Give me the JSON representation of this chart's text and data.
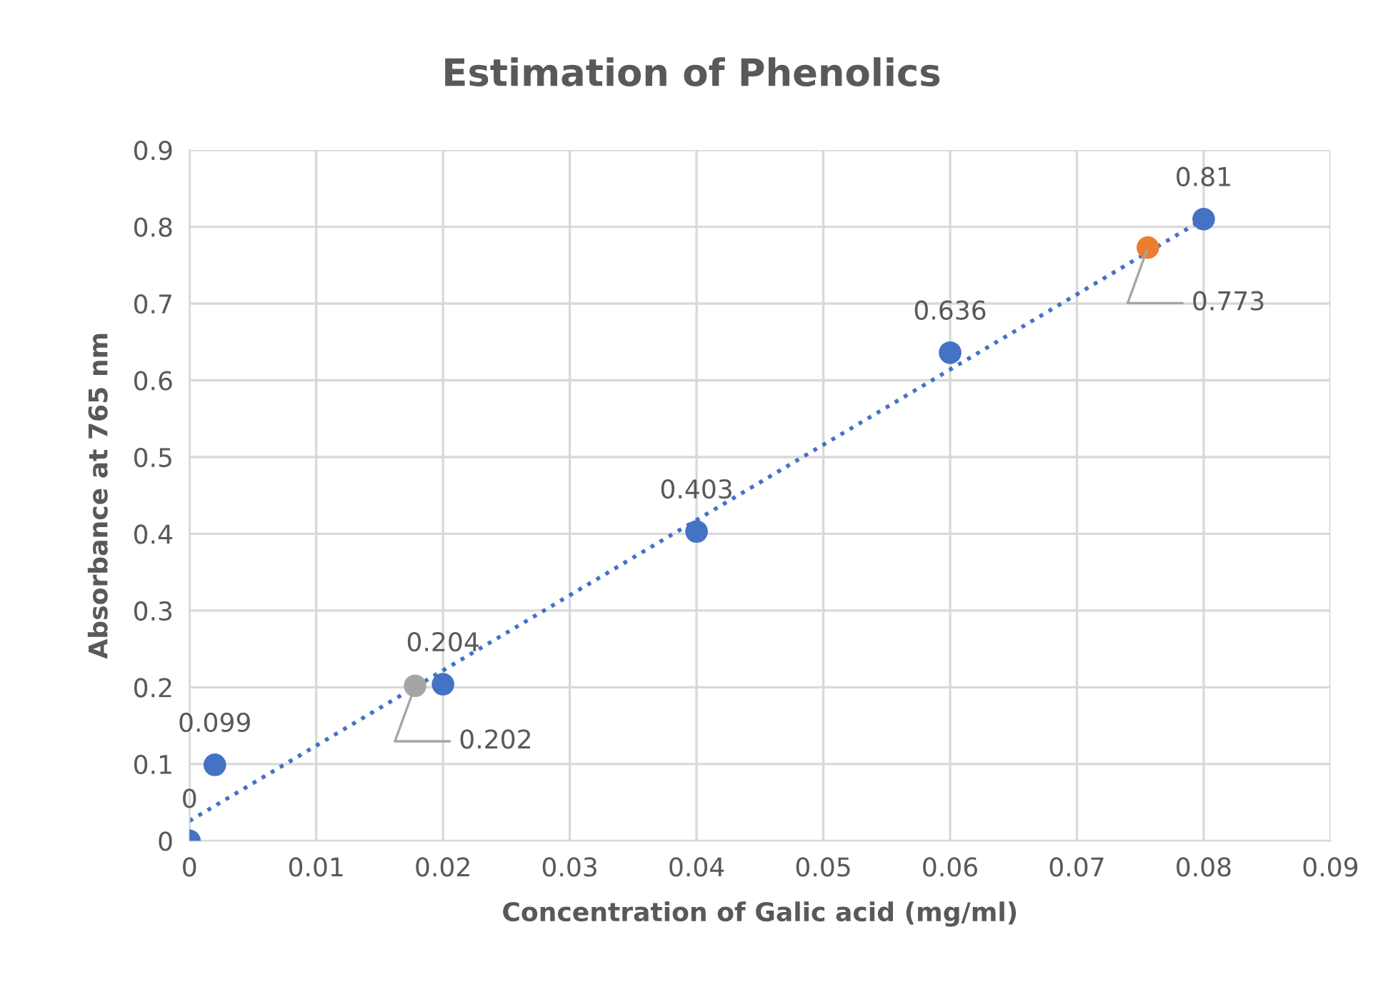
{
  "chart_data": {
    "type": "scatter",
    "title": "Estimation of Phenolics",
    "xlabel": "Concentration of Galic acid (mg/ml)",
    "ylabel": "Absorbance at 765 nm",
    "xlim": [
      0,
      0.09
    ],
    "xticks": [
      0,
      0.01,
      0.02,
      0.03,
      0.04,
      0.05,
      0.06,
      0.07,
      0.08,
      0.09
    ],
    "ylim": [
      0,
      0.9
    ],
    "yticks": [
      0,
      0.1,
      0.2,
      0.3,
      0.4,
      0.5,
      0.6,
      0.7,
      0.8,
      0.9
    ],
    "grid": true,
    "marker": "circle",
    "series": [
      {
        "type": "line",
        "line_style": "dotted",
        "marker": "none",
        "color": "#4472c4",
        "x": [
          0,
          0.08
        ],
        "values": [
          0.026,
          0.81
        ]
      },
      {
        "color": "#4472c4",
        "x": [
          0,
          0.002,
          0.02,
          0.04,
          0.06,
          0.08
        ],
        "values": [
          0,
          0.099,
          0.204,
          0.403,
          0.636,
          0.81
        ],
        "value_labels": [
          "0",
          "0.099",
          "0.204",
          "0.403",
          "0.636",
          "0.81"
        ]
      },
      {
        "color": "#a5a5a5",
        "x": [
          0.0178
        ],
        "values": [
          0.202
        ],
        "value_labels": [
          "0.202"
        ]
      },
      {
        "color": "#ed7d31",
        "x": [
          0.0756
        ],
        "values": [
          0.773
        ],
        "value_labels": [
          "0.773"
        ]
      }
    ]
  }
}
